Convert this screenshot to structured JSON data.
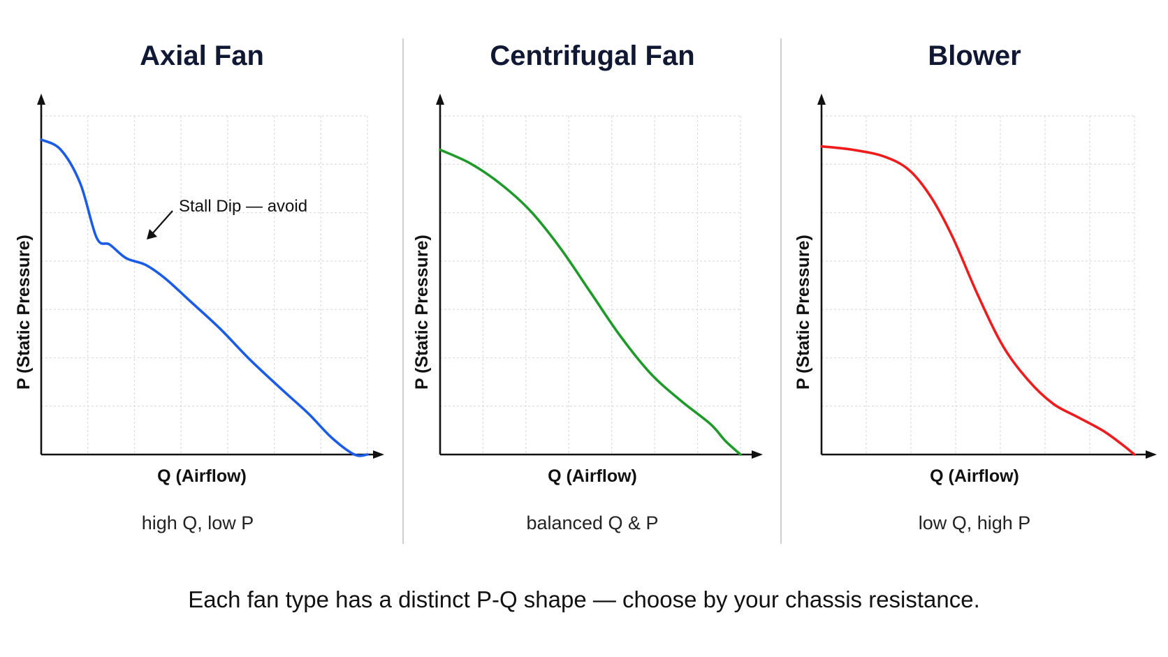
{
  "footer": "Each fan type has a distinct P-Q shape — choose by your chassis resistance.",
  "chart_data": [
    {
      "type": "line",
      "title": "Axial Fan",
      "subtitle": "high Q, low P",
      "xlabel": "Q (Airflow)",
      "ylabel": "P (Static Pressure)",
      "grid": true,
      "xlim": [
        0,
        1
      ],
      "ylim": [
        0,
        1
      ],
      "color": "#1a5ce8",
      "series": [
        {
          "x": [
            0,
            0.06,
            0.12,
            0.17,
            0.21,
            0.26,
            0.32,
            0.38,
            0.46,
            0.55,
            0.64,
            0.74,
            0.82,
            0.89,
            0.96,
            1.0
          ],
          "y": [
            0.93,
            0.9,
            0.8,
            0.64,
            0.62,
            0.58,
            0.56,
            0.52,
            0.45,
            0.37,
            0.28,
            0.19,
            0.12,
            0.05,
            -0.02,
            0.0
          ]
        }
      ],
      "annotation": {
        "text": "Stall Dip — avoid",
        "x": 0.32,
        "y": 0.64
      }
    },
    {
      "type": "line",
      "title": "Centrifugal Fan",
      "subtitle": "balanced Q & P",
      "xlabel": "Q (Airflow)",
      "ylabel": "P (Static Pressure)",
      "grid": true,
      "xlim": [
        0,
        1
      ],
      "ylim": [
        0,
        1
      ],
      "color": "#1f9a2a",
      "series": [
        {
          "x": [
            0,
            0.1,
            0.2,
            0.3,
            0.4,
            0.5,
            0.6,
            0.7,
            0.8,
            0.9,
            0.95,
            1.0
          ],
          "y": [
            0.9,
            0.86,
            0.8,
            0.72,
            0.61,
            0.48,
            0.35,
            0.24,
            0.16,
            0.09,
            0.04,
            0.0
          ]
        }
      ]
    },
    {
      "type": "line",
      "title": "Blower",
      "subtitle": "low Q, high P",
      "xlabel": "Q (Airflow)",
      "ylabel": "P (Static Pressure)",
      "grid": true,
      "xlim": [
        0,
        1
      ],
      "ylim": [
        0,
        1
      ],
      "color": "#ee1c1c",
      "series": [
        {
          "x": [
            0,
            0.1,
            0.2,
            0.28,
            0.35,
            0.42,
            0.5,
            0.58,
            0.66,
            0.74,
            0.82,
            0.9,
            0.96,
            1.0
          ],
          "y": [
            0.91,
            0.9,
            0.88,
            0.84,
            0.76,
            0.64,
            0.47,
            0.32,
            0.22,
            0.15,
            0.11,
            0.07,
            0.03,
            0.0
          ]
        }
      ]
    }
  ]
}
